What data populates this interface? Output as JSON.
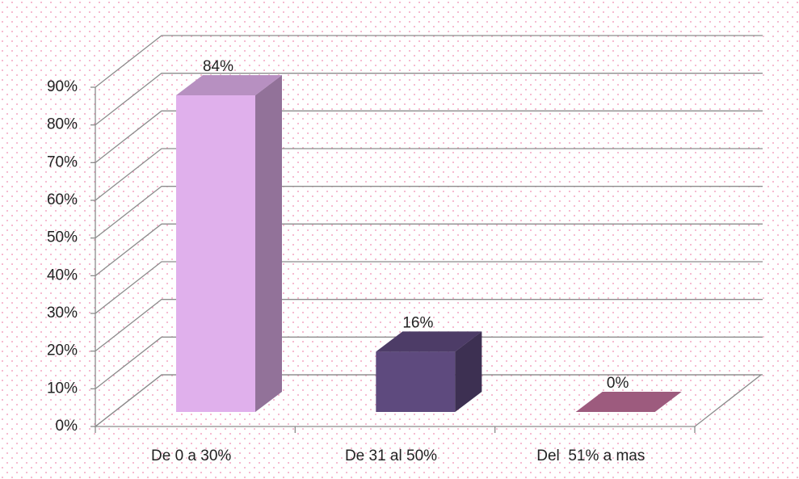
{
  "chart_data": {
    "type": "bar3d",
    "categories": [
      "De 0 a 30%",
      "De 31 al 50%",
      "Del  51% a mas"
    ],
    "values": [
      84,
      16,
      0
    ],
    "value_labels": [
      "84%",
      "16%",
      "0%"
    ],
    "colors": [
      "#e0b0ec",
      "#5e4a7e",
      "#c0709a"
    ],
    "ylim": [
      0,
      90
    ],
    "yticks": [
      {
        "value": 0,
        "label": "0%"
      },
      {
        "value": 10,
        "label": "10%"
      },
      {
        "value": 20,
        "label": "20%"
      },
      {
        "value": 30,
        "label": "30%"
      },
      {
        "value": 40,
        "label": "40%"
      },
      {
        "value": 50,
        "label": "50%"
      },
      {
        "value": 60,
        "label": "60%"
      },
      {
        "value": 70,
        "label": "70%"
      },
      {
        "value": 80,
        "label": "80%"
      },
      {
        "value": 90,
        "label": "90%"
      }
    ],
    "grid": true
  }
}
